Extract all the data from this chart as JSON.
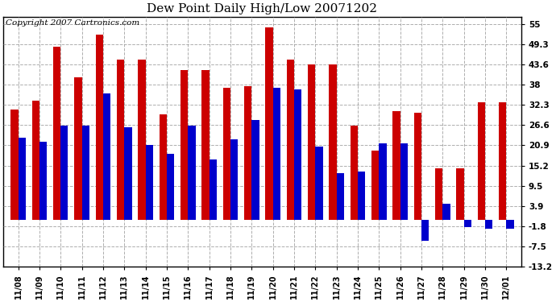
{
  "title": "Dew Point Daily High/Low 20071202",
  "copyright": "Copyright 2007 Cartronics.com",
  "dates": [
    "11/08",
    "11/09",
    "11/10",
    "11/11",
    "11/12",
    "11/13",
    "11/14",
    "11/15",
    "11/16",
    "11/17",
    "11/18",
    "11/19",
    "11/20",
    "11/21",
    "11/22",
    "11/23",
    "11/24",
    "11/25",
    "11/26",
    "11/27",
    "11/28",
    "11/29",
    "11/30",
    "12/01"
  ],
  "highs": [
    31.0,
    33.5,
    48.5,
    40.0,
    52.0,
    45.0,
    45.0,
    29.5,
    42.0,
    42.0,
    37.0,
    37.5,
    54.0,
    45.0,
    43.5,
    43.5,
    26.5,
    19.5,
    30.5,
    30.0,
    14.5,
    14.5,
    33.0,
    33.0
  ],
  "lows": [
    23.0,
    22.0,
    26.5,
    26.5,
    35.5,
    26.0,
    21.0,
    18.5,
    26.5,
    17.0,
    22.5,
    28.0,
    37.0,
    36.5,
    20.5,
    13.0,
    13.5,
    21.5,
    21.5,
    -6.0,
    4.5,
    -2.0,
    -2.5,
    -2.5
  ],
  "high_color": "#cc0000",
  "low_color": "#0000cc",
  "background_color": "#ffffff",
  "grid_color": "#999999",
  "ylim": [
    -13.2,
    57.0
  ],
  "yticks": [
    55.0,
    49.3,
    43.6,
    38.0,
    32.3,
    26.6,
    20.9,
    15.2,
    9.5,
    3.9,
    -1.8,
    -7.5,
    -13.2
  ],
  "title_fontsize": 11,
  "copyright_fontsize": 7.5,
  "bar_width": 0.35
}
